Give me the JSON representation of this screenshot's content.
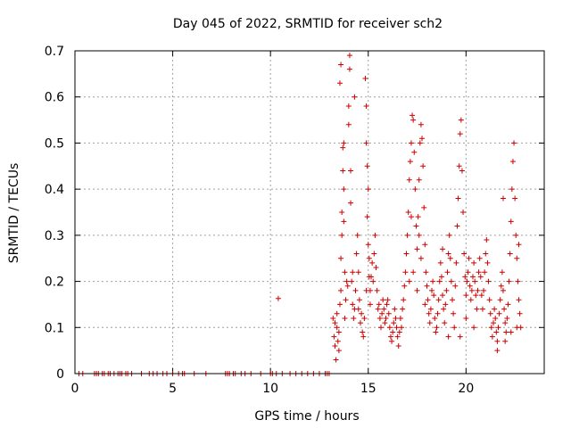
{
  "chart_data": {
    "type": "scatter",
    "title": "Day 045 of 2022, SRMTID for receiver sch2",
    "xlabel": "GPS time / hours",
    "ylabel": "SRMTID / TECUs",
    "xlim": [
      0,
      24
    ],
    "ylim": [
      0,
      0.7
    ],
    "xticks": [
      0,
      5,
      10,
      15,
      20
    ],
    "xtick_labels": [
      "0",
      "5",
      "10",
      "15",
      "20"
    ],
    "yticks": [
      0,
      0.1,
      0.2,
      0.3,
      0.4,
      0.5,
      0.6,
      0.7
    ],
    "ytick_labels": [
      "0",
      "0.1",
      "0.2",
      "0.3",
      "0.4",
      "0.5",
      "0.6",
      "0.7"
    ],
    "grid": true,
    "marker": "plus",
    "color": "#cc0000",
    "series": [
      {
        "name": "SRMTID",
        "points": [
          [
            0.2,
            0
          ],
          [
            0.4,
            0
          ],
          [
            1.0,
            0
          ],
          [
            1.1,
            0
          ],
          [
            1.2,
            0
          ],
          [
            1.4,
            0
          ],
          [
            1.5,
            0
          ],
          [
            1.7,
            0
          ],
          [
            1.8,
            0
          ],
          [
            2.0,
            0
          ],
          [
            2.2,
            0
          ],
          [
            2.3,
            0
          ],
          [
            2.4,
            0
          ],
          [
            2.6,
            0
          ],
          [
            2.7,
            0
          ],
          [
            2.9,
            0
          ],
          [
            3.4,
            0
          ],
          [
            3.8,
            0
          ],
          [
            4.0,
            0
          ],
          [
            4.2,
            0
          ],
          [
            4.5,
            0
          ],
          [
            4.7,
            0
          ],
          [
            5.0,
            0
          ],
          [
            5.3,
            0
          ],
          [
            5.5,
            0
          ],
          [
            5.6,
            0
          ],
          [
            6.1,
            0
          ],
          [
            6.7,
            0
          ],
          [
            7.7,
            0
          ],
          [
            7.8,
            0
          ],
          [
            7.9,
            0
          ],
          [
            8.1,
            0
          ],
          [
            8.2,
            0
          ],
          [
            8.5,
            0
          ],
          [
            8.7,
            0
          ],
          [
            9.0,
            0
          ],
          [
            9.5,
            0
          ],
          [
            10.0,
            0
          ],
          [
            10.1,
            0
          ],
          [
            10.3,
            0
          ],
          [
            10.6,
            0
          ],
          [
            11.0,
            0
          ],
          [
            11.3,
            0
          ],
          [
            11.6,
            0
          ],
          [
            11.9,
            0
          ],
          [
            12.2,
            0
          ],
          [
            12.5,
            0
          ],
          [
            12.8,
            0
          ],
          [
            12.9,
            0
          ],
          [
            13.0,
            0
          ],
          [
            10.4,
            0.163
          ],
          [
            13.2,
            0.12
          ],
          [
            13.25,
            0.08
          ],
          [
            13.3,
            0.06
          ],
          [
            13.35,
            0.03
          ],
          [
            13.4,
            0.1
          ],
          [
            13.45,
            0.07
          ],
          [
            13.5,
            0.05
          ],
          [
            13.3,
            0.11
          ],
          [
            13.4,
            0.13
          ],
          [
            13.5,
            0.09
          ],
          [
            13.55,
            0.15
          ],
          [
            13.6,
            0.18
          ],
          [
            13.6,
            0.25
          ],
          [
            13.65,
            0.3
          ],
          [
            13.65,
            0.35
          ],
          [
            13.7,
            0.44
          ],
          [
            13.7,
            0.49
          ],
          [
            13.75,
            0.4
          ],
          [
            13.75,
            0.33
          ],
          [
            13.8,
            0.22
          ],
          [
            13.85,
            0.16
          ],
          [
            13.55,
            0.63
          ],
          [
            13.6,
            0.67
          ],
          [
            13.75,
            0.5
          ],
          [
            13.8,
            0.12
          ],
          [
            13.9,
            0.2
          ],
          [
            13.95,
            0.19
          ],
          [
            14.0,
            0.54
          ],
          [
            14.0,
            0.58
          ],
          [
            14.05,
            0.69
          ],
          [
            14.05,
            0.66
          ],
          [
            14.1,
            0.44
          ],
          [
            14.1,
            0.37
          ],
          [
            14.15,
            0.2
          ],
          [
            14.2,
            0.15
          ],
          [
            14.25,
            0.12
          ],
          [
            14.3,
            0.14
          ],
          [
            14.35,
            0.18
          ],
          [
            14.4,
            0.26
          ],
          [
            14.45,
            0.3
          ],
          [
            14.5,
            0.22
          ],
          [
            14.55,
            0.16
          ],
          [
            14.6,
            0.11
          ],
          [
            14.65,
            0.13
          ],
          [
            14.7,
            0.09
          ],
          [
            14.75,
            0.08
          ],
          [
            14.8,
            0.12
          ],
          [
            14.3,
            0.6
          ],
          [
            14.2,
            0.22
          ],
          [
            14.5,
            0.14
          ],
          [
            14.85,
            0.64
          ],
          [
            14.9,
            0.58
          ],
          [
            14.9,
            0.5
          ],
          [
            14.95,
            0.45
          ],
          [
            14.95,
            0.34
          ],
          [
            15.0,
            0.28
          ],
          [
            15.05,
            0.21
          ],
          [
            15.1,
            0.18
          ],
          [
            15.1,
            0.15
          ],
          [
            15.15,
            0.21
          ],
          [
            15.2,
            0.24
          ],
          [
            15.25,
            0.2
          ],
          [
            15.3,
            0.26
          ],
          [
            15.35,
            0.3
          ],
          [
            15.4,
            0.23
          ],
          [
            15.45,
            0.18
          ],
          [
            15.5,
            0.14
          ],
          [
            14.9,
            0.18
          ],
          [
            15.0,
            0.4
          ],
          [
            15.05,
            0.25
          ],
          [
            15.55,
            0.15
          ],
          [
            15.6,
            0.12
          ],
          [
            15.65,
            0.1
          ],
          [
            15.7,
            0.13
          ],
          [
            15.75,
            0.16
          ],
          [
            15.8,
            0.14
          ],
          [
            15.85,
            0.11
          ],
          [
            15.9,
            0.12
          ],
          [
            15.95,
            0.15
          ],
          [
            16.0,
            0.16
          ],
          [
            16.05,
            0.13
          ],
          [
            16.1,
            0.1
          ],
          [
            16.15,
            0.08
          ],
          [
            16.2,
            0.07
          ],
          [
            16.25,
            0.09
          ],
          [
            16.3,
            0.11
          ],
          [
            16.35,
            0.14
          ],
          [
            16.4,
            0.12
          ],
          [
            16.45,
            0.1
          ],
          [
            16.5,
            0.08
          ],
          [
            16.55,
            0.06
          ],
          [
            16.6,
            0.09
          ],
          [
            16.65,
            0.12
          ],
          [
            16.7,
            0.1
          ],
          [
            16.75,
            0.14
          ],
          [
            16.8,
            0.16
          ],
          [
            16.85,
            0.19
          ],
          [
            16.9,
            0.22
          ],
          [
            16.95,
            0.26
          ],
          [
            17.0,
            0.3
          ],
          [
            17.05,
            0.35
          ],
          [
            17.1,
            0.42
          ],
          [
            17.15,
            0.46
          ],
          [
            17.2,
            0.5
          ],
          [
            17.25,
            0.56
          ],
          [
            17.3,
            0.55
          ],
          [
            17.35,
            0.48
          ],
          [
            17.4,
            0.4
          ],
          [
            17.45,
            0.32
          ],
          [
            17.5,
            0.27
          ],
          [
            17.55,
            0.34
          ],
          [
            17.6,
            0.42
          ],
          [
            17.65,
            0.5
          ],
          [
            17.7,
            0.54
          ],
          [
            17.75,
            0.51
          ],
          [
            17.8,
            0.45
          ],
          [
            17.85,
            0.36
          ],
          [
            17.9,
            0.28
          ],
          [
            17.95,
            0.22
          ],
          [
            18.0,
            0.19
          ],
          [
            17.1,
            0.2
          ],
          [
            17.3,
            0.22
          ],
          [
            17.5,
            0.18
          ],
          [
            17.7,
            0.25
          ],
          [
            17.9,
            0.15
          ],
          [
            17.2,
            0.34
          ],
          [
            17.6,
            0.3
          ],
          [
            18.05,
            0.16
          ],
          [
            18.1,
            0.13
          ],
          [
            18.15,
            0.11
          ],
          [
            18.2,
            0.14
          ],
          [
            18.25,
            0.18
          ],
          [
            18.3,
            0.2
          ],
          [
            18.35,
            0.17
          ],
          [
            18.4,
            0.12
          ],
          [
            18.45,
            0.09
          ],
          [
            18.5,
            0.1
          ],
          [
            18.55,
            0.13
          ],
          [
            18.6,
            0.16
          ],
          [
            18.65,
            0.2
          ],
          [
            18.7,
            0.24
          ],
          [
            18.75,
            0.21
          ],
          [
            18.8,
            0.17
          ],
          [
            18.85,
            0.14
          ],
          [
            18.9,
            0.11
          ],
          [
            18.95,
            0.15
          ],
          [
            19.0,
            0.18
          ],
          [
            19.05,
            0.22
          ],
          [
            19.1,
            0.26
          ],
          [
            19.15,
            0.3
          ],
          [
            19.2,
            0.25
          ],
          [
            19.25,
            0.2
          ],
          [
            19.3,
            0.16
          ],
          [
            19.35,
            0.13
          ],
          [
            19.4,
            0.1
          ],
          [
            18.8,
            0.27
          ],
          [
            19.1,
            0.08
          ],
          [
            19.45,
            0.19
          ],
          [
            19.5,
            0.24
          ],
          [
            19.55,
            0.32
          ],
          [
            19.6,
            0.38
          ],
          [
            19.65,
            0.45
          ],
          [
            19.7,
            0.52
          ],
          [
            19.75,
            0.55
          ],
          [
            19.8,
            0.44
          ],
          [
            19.85,
            0.35
          ],
          [
            19.9,
            0.26
          ],
          [
            19.95,
            0.21
          ],
          [
            20.0,
            0.17
          ],
          [
            20.05,
            0.2
          ],
          [
            20.1,
            0.22
          ],
          [
            20.15,
            0.25
          ],
          [
            20.2,
            0.19
          ],
          [
            20.25,
            0.16
          ],
          [
            20.3,
            0.18
          ],
          [
            20.35,
            0.21
          ],
          [
            20.4,
            0.24
          ],
          [
            20.45,
            0.2
          ],
          [
            20.5,
            0.17
          ],
          [
            20.55,
            0.14
          ],
          [
            20.6,
            0.18
          ],
          [
            20.65,
            0.22
          ],
          [
            20.7,
            0.25
          ],
          [
            20.75,
            0.21
          ],
          [
            20.8,
            0.17
          ],
          [
            20.85,
            0.14
          ],
          [
            20.9,
            0.18
          ],
          [
            20.95,
            0.22
          ],
          [
            21.0,
            0.26
          ],
          [
            21.05,
            0.29
          ],
          [
            21.1,
            0.24
          ],
          [
            21.15,
            0.2
          ],
          [
            21.2,
            0.16
          ],
          [
            19.7,
            0.08
          ],
          [
            20.0,
            0.12
          ],
          [
            20.4,
            0.1
          ],
          [
            21.25,
            0.13
          ],
          [
            21.3,
            0.1
          ],
          [
            21.35,
            0.08
          ],
          [
            21.4,
            0.11
          ],
          [
            21.45,
            0.14
          ],
          [
            21.5,
            0.12
          ],
          [
            21.55,
            0.09
          ],
          [
            21.6,
            0.07
          ],
          [
            21.65,
            0.1
          ],
          [
            21.7,
            0.13
          ],
          [
            21.75,
            0.16
          ],
          [
            21.8,
            0.19
          ],
          [
            21.85,
            0.22
          ],
          [
            21.9,
            0.18
          ],
          [
            21.95,
            0.14
          ],
          [
            22.0,
            0.11
          ],
          [
            22.05,
            0.09
          ],
          [
            22.1,
            0.12
          ],
          [
            22.15,
            0.15
          ],
          [
            22.2,
            0.2
          ],
          [
            22.25,
            0.26
          ],
          [
            22.3,
            0.33
          ],
          [
            22.35,
            0.4
          ],
          [
            22.4,
            0.46
          ],
          [
            22.45,
            0.5
          ],
          [
            22.5,
            0.38
          ],
          [
            22.55,
            0.3
          ],
          [
            22.6,
            0.25
          ],
          [
            22.65,
            0.2
          ],
          [
            22.7,
            0.16
          ],
          [
            22.75,
            0.13
          ],
          [
            22.8,
            0.1
          ],
          [
            21.6,
            0.05
          ],
          [
            21.9,
            0.38
          ],
          [
            22.0,
            0.07
          ],
          [
            22.3,
            0.09
          ],
          [
            22.6,
            0.1
          ],
          [
            22.7,
            0.28
          ]
        ]
      }
    ]
  }
}
